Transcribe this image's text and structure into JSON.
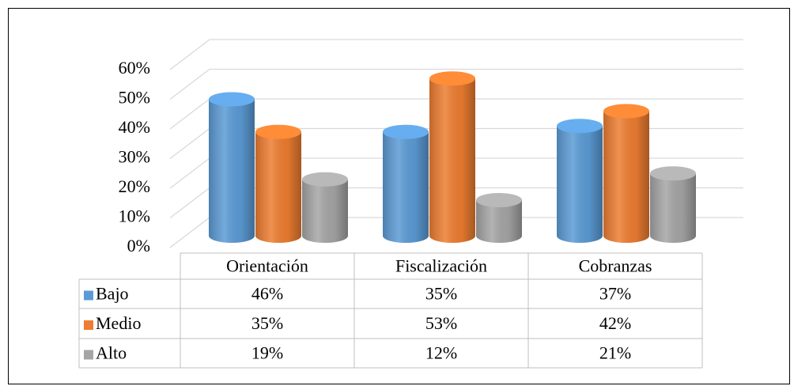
{
  "chart_data": {
    "type": "bar",
    "categories": [
      "Orientación",
      "Fiscalización",
      "Cobranzas"
    ],
    "series": [
      {
        "name": "Bajo",
        "color": "#5b9bd5",
        "values": [
          46,
          35,
          37
        ],
        "value_labels": [
          "46%",
          "35%",
          "37%"
        ]
      },
      {
        "name": "Medio",
        "color": "#ed7d31",
        "values": [
          35,
          53,
          42
        ],
        "value_labels": [
          "35%",
          "53%",
          "42%"
        ]
      },
      {
        "name": "Alto",
        "color": "#a5a5a5",
        "values": [
          19,
          12,
          21
        ],
        "value_labels": [
          "19%",
          "12%",
          "21%"
        ]
      }
    ],
    "ylim": [
      0,
      60
    ],
    "yticks": [
      {
        "value": 0,
        "label": "0%"
      },
      {
        "value": 10,
        "label": "10%"
      },
      {
        "value": 20,
        "label": "20%"
      },
      {
        "value": 30,
        "label": "30%"
      },
      {
        "value": 40,
        "label": "40%"
      },
      {
        "value": 50,
        "label": "50%"
      },
      {
        "value": 60,
        "label": "60%"
      }
    ],
    "grid": true
  }
}
